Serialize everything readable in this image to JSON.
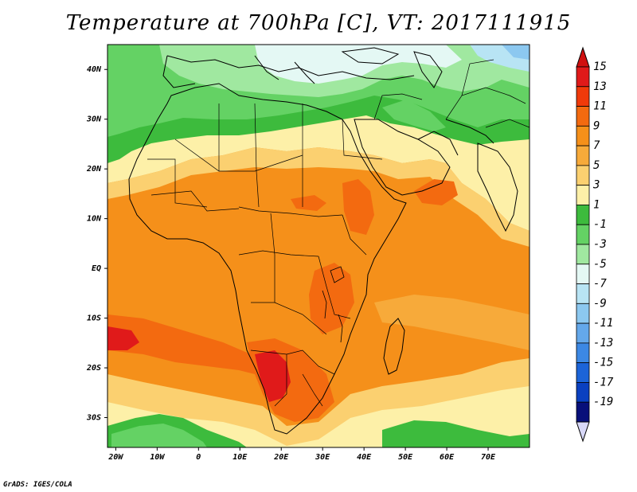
{
  "title": "Temperature at 700hPa [C], VT: 2017111915",
  "credit": "GrADS: IGES/COLA",
  "map": {
    "lon_range": [
      -22,
      80
    ],
    "lat_range": [
      -36,
      45
    ],
    "lat_ticks": [
      {
        "value": 40,
        "label": "40N"
      },
      {
        "value": 30,
        "label": "30N"
      },
      {
        "value": 20,
        "label": "20N"
      },
      {
        "value": 10,
        "label": "10N"
      },
      {
        "value": 0,
        "label": "EQ"
      },
      {
        "value": -10,
        "label": "10S"
      },
      {
        "value": -20,
        "label": "20S"
      },
      {
        "value": -30,
        "label": "30S"
      }
    ],
    "lon_ticks": [
      {
        "value": -20,
        "label": "20W"
      },
      {
        "value": -10,
        "label": "10W"
      },
      {
        "value": 0,
        "label": "0"
      },
      {
        "value": 10,
        "label": "10E"
      },
      {
        "value": 20,
        "label": "20E"
      },
      {
        "value": 30,
        "label": "30E"
      },
      {
        "value": 40,
        "label": "40E"
      },
      {
        "value": 50,
        "label": "50E"
      },
      {
        "value": 60,
        "label": "60E"
      },
      {
        "value": 70,
        "label": "70E"
      }
    ]
  },
  "colorbar": {
    "labels": [
      "15",
      "13",
      "11",
      "9",
      "7",
      "5",
      "3",
      "1",
      "-1",
      "-3",
      "-5",
      "-7",
      "-9",
      "-11",
      "-13",
      "-15",
      "-17",
      "-19"
    ],
    "colors": [
      "#e01a1a",
      "#f03a0a",
      "#f36a10",
      "#f5901a",
      "#f7aa3a",
      "#fbd070",
      "#fdf0a8",
      "#3dbb3d",
      "#64d264",
      "#a0e8a0",
      "#e4f8f4",
      "#b8e4f4",
      "#8cc8f0",
      "#64a8ea",
      "#3c88e4",
      "#1c64d8",
      "#0a40c0",
      "#08107a"
    ],
    "top_arrow_color": "#d01010",
    "bottom_arrow_color": "#d8d8f8"
  },
  "palette": {
    "ocean_orange": "#f5901a",
    "land_orange": "#f6a230",
    "hot": "#f36a10",
    "very_hot": "#e01a1a",
    "yellow": "#fdf0a8",
    "light_orange": "#fbd070",
    "green": "#3dbb3d",
    "light_green": "#64d264",
    "pale_green": "#a0e8a0",
    "very_pale": "#e4f8f4",
    "pale_blue": "#b8e4f4",
    "blue": "#8cc8f0"
  }
}
